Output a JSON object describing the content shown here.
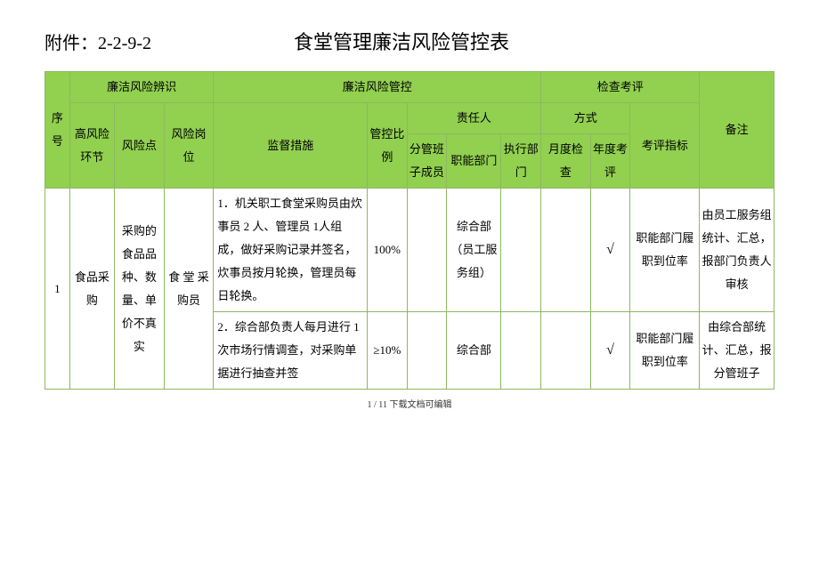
{
  "header": {
    "attachment": "附件：2-2-9-2",
    "title": "食堂管理廉洁风险管控表"
  },
  "table": {
    "header_bg": "#92d050",
    "border_color": "#8db862",
    "headers": {
      "seq": "序号",
      "risk_identify": "廉洁风险辨识",
      "risk_control": "廉洁风险管控",
      "check_eval": "检查考评",
      "note": "备注",
      "high_risk_link": "高风险环节",
      "risk_point": "风险点",
      "risk_post": "风险岗位",
      "supervise": "监督措施",
      "ratio": "管控比例",
      "responsible": "责任人",
      "method": "方式",
      "eval_index": "考评指标",
      "member": "分管班子成员",
      "func_dept": "职能部门",
      "exec_dept": "执行部门",
      "month_check": "月度检查",
      "year_eval": "年度考评"
    },
    "rows": [
      {
        "seq": "1",
        "link": "食品采购",
        "point": "采购的食品品种、数量、单价不真实",
        "post": "食 堂 采购员",
        "subrows": [
          {
            "measure": "1．机关职工食堂采购员由炊事员 2 人、管理员 1人组成，做好采购记录并签名，炊事员按月轮换，管理员每日轮换。",
            "ratio": "100%",
            "member": "",
            "func_dept": "综合部（员工服务组）",
            "exec_dept": "",
            "month_check": "",
            "year_eval": "√",
            "eval_index": "职能部门履职到位率",
            "note": "由员工服务组统计、汇总，报部门负责人审核"
          },
          {
            "measure": "2．综合部负责人每月进行 1 次市场行情调查，对采购单据进行抽查并签",
            "ratio": "≥10%",
            "member": "",
            "func_dept": "综合部",
            "exec_dept": "",
            "month_check": "",
            "year_eval": "√",
            "eval_index": "职能部门履职到位率",
            "note": "由综合部统计、汇总，报分管班子"
          }
        ]
      }
    ]
  },
  "footer": "1 / 11 下载文档可编辑"
}
